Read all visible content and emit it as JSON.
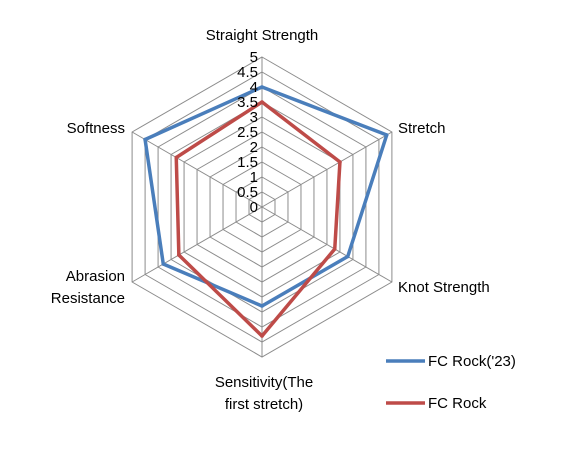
{
  "chart_data": {
    "type": "radar",
    "axes": [
      "Straight Strength",
      "Stretch",
      "Knot Strength",
      "Sensitivity(The first stretch)",
      "Abrasion Resistance",
      "Softness"
    ],
    "axis_label_lines": [
      [
        "Straight Strength"
      ],
      [
        "Stretch"
      ],
      [
        "Knot Strength"
      ],
      [
        "Sensitivity(The",
        "first stretch)"
      ],
      [
        "Abrasion",
        "Resistance"
      ],
      [
        "Softness"
      ]
    ],
    "range": [
      0,
      5
    ],
    "ticks": [
      "0",
      "0.5",
      "1",
      "1.5",
      "2",
      "2.5",
      "3",
      "3.5",
      "4",
      "4.5",
      "5"
    ],
    "grid": true,
    "legend_position": "bottom-right",
    "series": [
      {
        "name": "FC Rock('23)",
        "color": "#4a7ebb",
        "values": [
          4,
          4.8,
          3.3,
          3.3,
          3.8,
          4.5
        ]
      },
      {
        "name": "FC Rock",
        "color": "#be4b48",
        "values": [
          3.5,
          3.0,
          2.8,
          4.3,
          3.2,
          3.3
        ]
      }
    ]
  }
}
